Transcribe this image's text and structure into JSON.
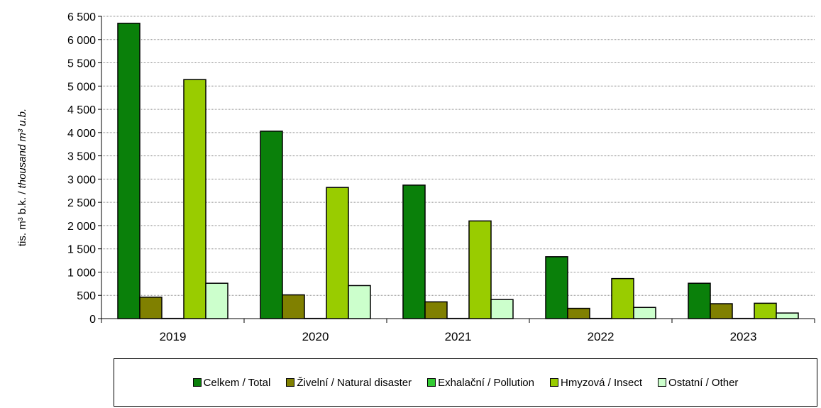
{
  "chart_data": {
    "type": "bar",
    "categories": [
      "2019",
      "2020",
      "2021",
      "2022",
      "2023"
    ],
    "ylabel_prefix": "tis. m³ b.k. / ",
    "ylabel_italic": "thousand m³ u.b.",
    "ylim": [
      0,
      6500
    ],
    "yticks": [
      0,
      500,
      1000,
      1500,
      2000,
      2500,
      3000,
      3500,
      4000,
      4500,
      5000,
      5500,
      6000,
      6500
    ],
    "ytick_labels": [
      "0",
      "500",
      "1 000",
      "1 500",
      "2 000",
      "2 500",
      "3 000",
      "3 500",
      "4 000",
      "4 500",
      "5 000",
      "5 500",
      "6 000",
      "6 500"
    ],
    "grid": true,
    "legend_position": "bottom",
    "series": [
      {
        "name": "Celkem / Total",
        "color": "#0a800a",
        "values": [
          6350,
          4030,
          2870,
          1330,
          760
        ]
      },
      {
        "name": "Živelní / Natural disaster",
        "color": "#808000",
        "values": [
          460,
          510,
          360,
          220,
          320
        ]
      },
      {
        "name": "Exhalační / Pollution",
        "color": "#33cc33",
        "values": [
          5,
          5,
          5,
          5,
          5
        ]
      },
      {
        "name": "Hmyzová / Insect",
        "color": "#99cc00",
        "values": [
          5140,
          2820,
          2100,
          860,
          330
        ]
      },
      {
        "name": "Ostatní / Other",
        "color": "#ccffcc",
        "values": [
          760,
          710,
          410,
          240,
          120
        ]
      }
    ]
  }
}
